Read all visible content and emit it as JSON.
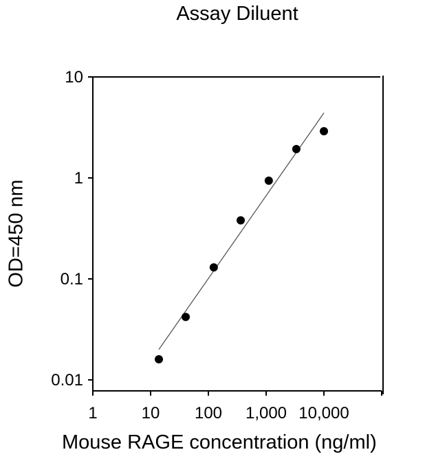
{
  "chart_data": {
    "type": "scatter",
    "title": "Assay Diluent",
    "xlabel": "Mouse RAGE concentration (ng/ml)",
    "ylabel": "OD=450 nm",
    "xscale": "log",
    "yscale": "log",
    "xlim": [
      1,
      100000
    ],
    "ylim": [
      0.008,
      10
    ],
    "x_ticks": [
      1,
      10,
      100,
      1000,
      10000
    ],
    "x_tick_labels": [
      "1",
      "10",
      "100",
      "1,000",
      "10,000"
    ],
    "y_ticks": [
      0.01,
      0.1,
      1,
      10
    ],
    "y_tick_labels": [
      "0.01",
      "0.1",
      "1",
      "10"
    ],
    "grid": false,
    "legend": null,
    "series": [
      {
        "name": "Assay Diluent",
        "marker": "filled-circle",
        "x": [
          13.9,
          40.5,
          124,
          363,
          1111,
          3333,
          10000
        ],
        "y": [
          0.016,
          0.042,
          0.13,
          0.38,
          0.94,
          1.93,
          2.9
        ]
      }
    ],
    "fit_line": {
      "type": "linear-log-log",
      "x_start": 13.9,
      "y_start": 0.02,
      "x_end": 10000,
      "y_end": 4.4
    }
  }
}
